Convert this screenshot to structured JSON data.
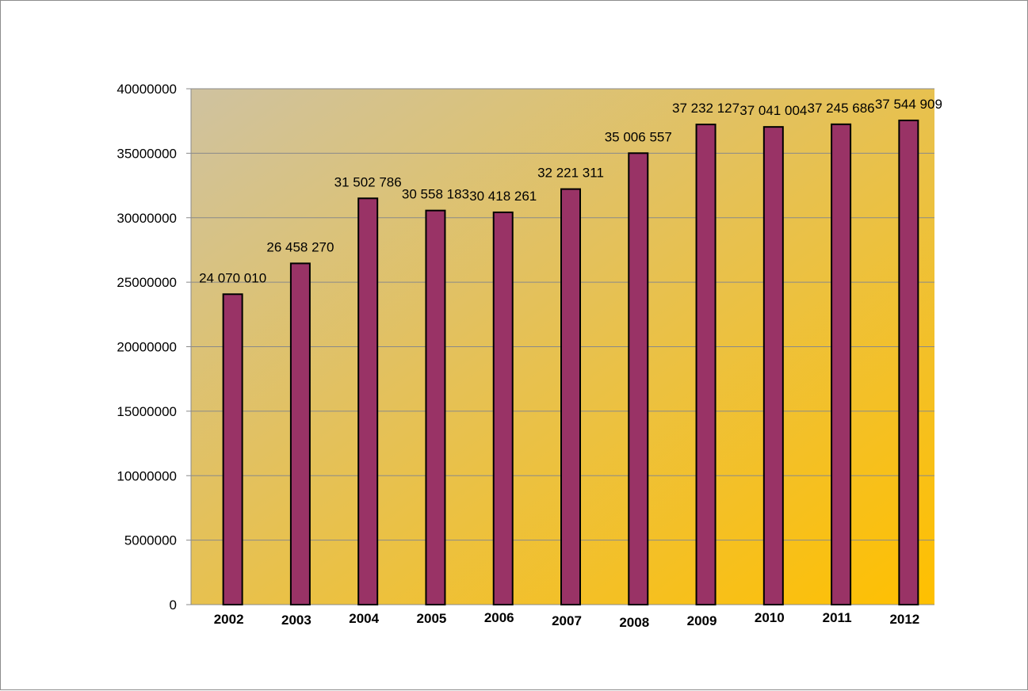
{
  "chart_data": {
    "type": "bar",
    "categories": [
      "2002",
      "2003",
      "2004",
      "2005",
      "2006",
      "2007",
      "2008",
      "2009",
      "2010",
      "2011",
      "2012"
    ],
    "values": [
      24070010,
      26458270,
      31502786,
      30558183,
      30418261,
      32221311,
      35006557,
      37232127,
      37041004,
      37245686,
      37544909
    ],
    "data_labels": [
      "24 070 010",
      "26 458 270",
      "31 502 786",
      "30 558 183",
      "30 418 261",
      "32 221 311",
      "35 006 557",
      "37 232 127",
      "37 041 004",
      "37 245 686",
      "37 544 909"
    ],
    "yticks": [
      "0",
      "5000000",
      "10000000",
      "15000000",
      "20000000",
      "25000000",
      "30000000",
      "35000000",
      "40000000"
    ],
    "ylim": [
      0,
      40000000
    ],
    "title": "",
    "xlabel": "",
    "ylabel": "",
    "grid": true,
    "legend": "none",
    "colors": {
      "bar_fill": "#993366",
      "bar_stroke": "#000000",
      "plot_bg_start": "#cfc2a0",
      "plot_bg_end": "#ffc000",
      "gridline": "#8a8a8a"
    }
  }
}
